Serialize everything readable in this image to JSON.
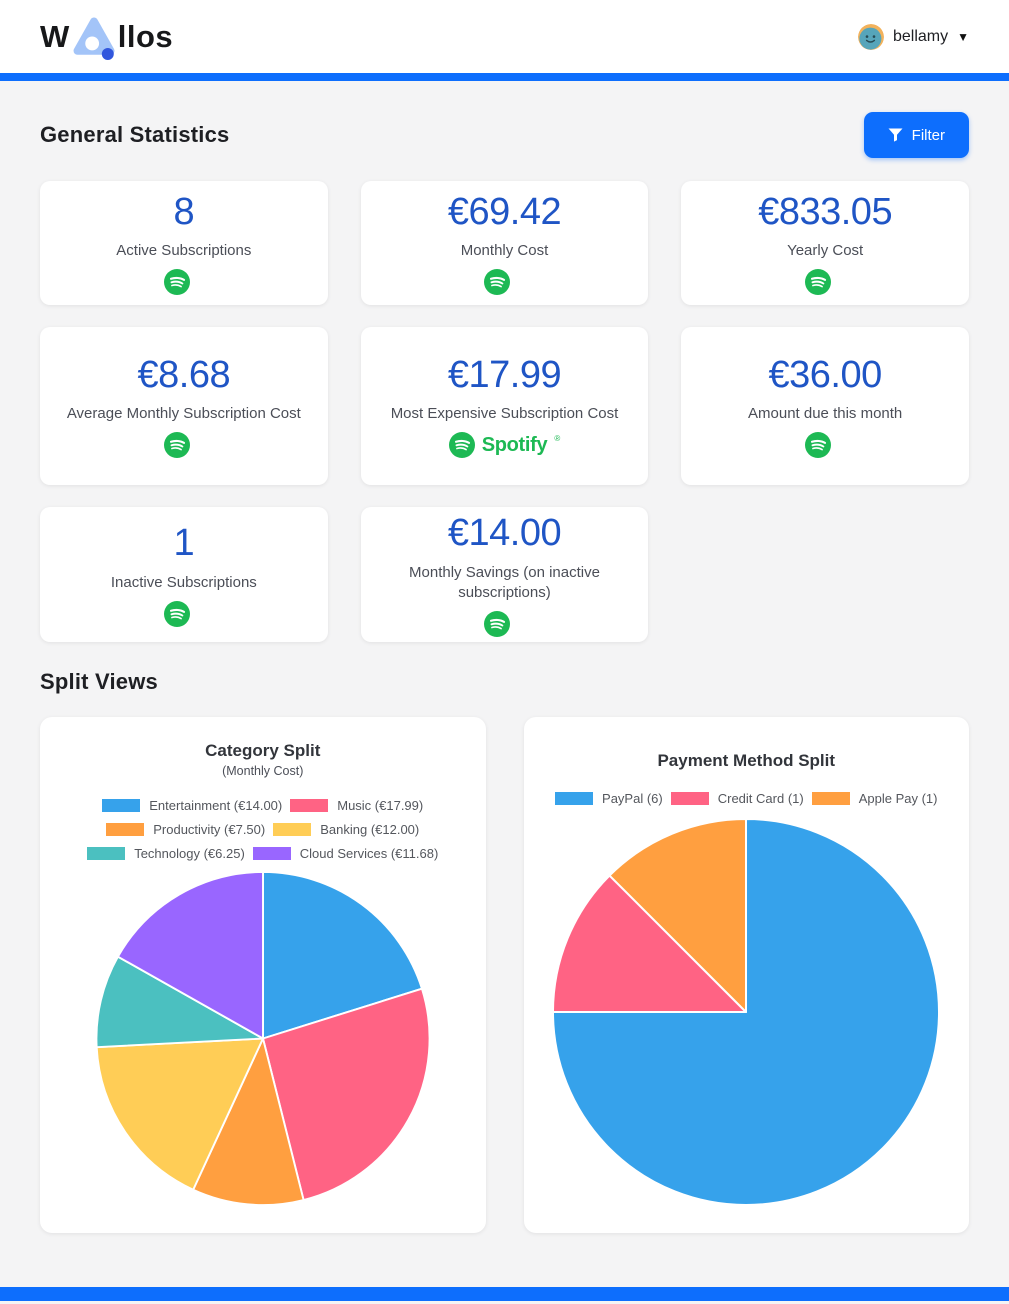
{
  "app": {
    "name_prefix": "W",
    "name_suffix": "llos"
  },
  "colors": {
    "accent": "#0d6efd",
    "stat_value": "#1f55c5",
    "spotify_green": "#1DB954"
  },
  "header": {
    "user_name": "bellamy",
    "caret": "▼"
  },
  "sections": {
    "general_statistics": "General Statistics",
    "split_views": "Split Views"
  },
  "filter_button": {
    "label": "Filter"
  },
  "stat_cards": [
    {
      "value": "8",
      "label": "Active Subscriptions"
    },
    {
      "value": "€69.42",
      "label": "Monthly Cost"
    },
    {
      "value": "€833.05",
      "label": "Yearly Cost"
    },
    {
      "value": "€8.68",
      "label": "Average Monthly Subscription Cost"
    },
    {
      "value": "€17.99",
      "label": "Most Expensive Subscription Cost",
      "logo": "spotify"
    },
    {
      "value": "€36.00",
      "label": "Amount due this month"
    },
    {
      "value": "1",
      "label": "Inactive Subscriptions"
    },
    {
      "value": "€14.00",
      "label": "Monthly Savings (on inactive subscriptions)"
    }
  ],
  "spotify": {
    "wordmark": "Spotify",
    "registered_mark": "®"
  },
  "chart_data": [
    {
      "type": "pie",
      "title": "Category Split",
      "subtitle": "(Monthly Cost)",
      "legend_position": "top",
      "direction": "clockwise",
      "start_angle_deg": 0,
      "categories": [
        "Entertainment",
        "Music",
        "Productivity",
        "Banking",
        "Technology",
        "Cloud Services"
      ],
      "values": [
        14.0,
        17.99,
        7.5,
        12.0,
        6.25,
        11.68
      ],
      "legend_labels": [
        "Entertainment (€14.00)",
        "Music (€17.99)",
        "Productivity (€7.50)",
        "Banking (€12.00)",
        "Technology (€6.25)",
        "Cloud Services (€11.68)"
      ],
      "colors": [
        "#36A2EB",
        "#FF6384",
        "#FF9F40",
        "#FFCD56",
        "#4BC0C0",
        "#9966FF"
      ]
    },
    {
      "type": "pie",
      "title": "Payment Method Split",
      "subtitle": "",
      "legend_position": "top",
      "direction": "clockwise",
      "start_angle_deg": 0,
      "categories": [
        "PayPal",
        "Credit Card",
        "Apple Pay"
      ],
      "values": [
        6,
        1,
        1
      ],
      "legend_labels": [
        "PayPal (6)",
        "Credit Card (1)",
        "Apple Pay (1)"
      ],
      "colors": [
        "#36A2EB",
        "#FF6384",
        "#FF9F40"
      ]
    }
  ]
}
